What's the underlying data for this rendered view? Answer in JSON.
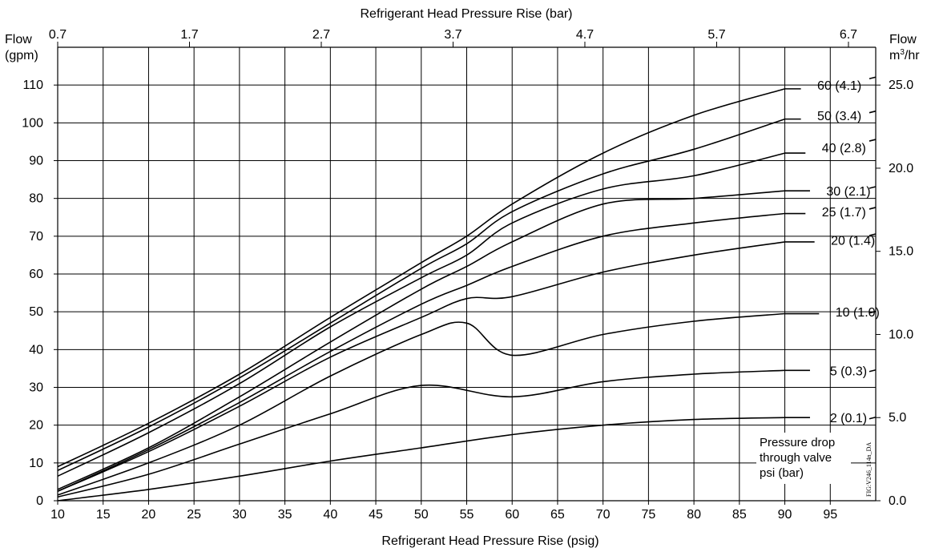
{
  "chart_data": {
    "type": "line",
    "top_axis": {
      "title": "Refrigerant Head Pressure Rise (bar)",
      "ticks": [
        "0.7",
        "1.7",
        "2.7",
        "3.7",
        "4.7",
        "5.7",
        "6.7"
      ],
      "tick_psig": [
        10,
        24.5,
        39,
        53.5,
        68,
        82.5,
        97
      ]
    },
    "bottom_axis": {
      "title": "Refrigerant Head Pressure Rise (psig)",
      "ticks": [
        "10",
        "15",
        "20",
        "25",
        "30",
        "35",
        "40",
        "45",
        "50",
        "55",
        "60",
        "65",
        "70",
        "75",
        "80",
        "85",
        "90",
        "95"
      ],
      "range": [
        10,
        100
      ]
    },
    "left_axis": {
      "title_line1": "Flow",
      "title_line2": "(gpm)",
      "ticks": [
        "0",
        "10",
        "20",
        "30",
        "40",
        "50",
        "60",
        "70",
        "80",
        "90",
        "100",
        "110"
      ],
      "range": [
        0,
        120
      ]
    },
    "right_axis": {
      "title_line1": "Flow",
      "title_line2_base": "m",
      "title_line2_sup": "3",
      "title_line2_rest": "/hr",
      "ticks": [
        "0.0",
        "5.0",
        "10.0",
        "15.0",
        "20.0",
        "25.0"
      ],
      "tick_gpm": [
        0,
        22,
        44,
        66,
        88,
        110
      ]
    },
    "grid": true,
    "series": [
      {
        "name": "2 (0.1)",
        "x": [
          10,
          20,
          30,
          40,
          50,
          60,
          70,
          80,
          90
        ],
        "y": [
          0,
          3,
          6.5,
          10.5,
          14,
          17.5,
          20,
          21.5,
          22
        ],
        "label_x": 97,
        "label_y": 22,
        "tick_y": 22
      },
      {
        "name": "5 (0.3)",
        "x": [
          10,
          20,
          30,
          40,
          50,
          60,
          70,
          80,
          90
        ],
        "y": [
          1,
          7,
          15,
          23,
          30.5,
          27.5,
          31.5,
          33.5,
          34.5
        ],
        "label_x": 97,
        "label_y": 34.5,
        "tick_y": 34.5
      },
      {
        "name": "10 (1.0)",
        "x": [
          10,
          20,
          30,
          40,
          50,
          55,
          60,
          70,
          80,
          90
        ],
        "y": [
          1.5,
          10,
          20,
          33,
          44,
          47,
          38.5,
          44,
          47.5,
          49.5
        ],
        "label_x": 98,
        "label_y": 50,
        "tick_y": 50
      },
      {
        "name": "20 (1.4)",
        "x": [
          10,
          20,
          30,
          40,
          50,
          55,
          60,
          70,
          80,
          90
        ],
        "y": [
          2.5,
          13,
          25,
          38,
          48.5,
          53.5,
          54,
          60.5,
          65,
          68.5
        ],
        "label_x": 97.5,
        "label_y": 69,
        "tick_y": 70.5
      },
      {
        "name": "25 (1.7)",
        "x": [
          10,
          20,
          30,
          40,
          50,
          55,
          60,
          70,
          80,
          90
        ],
        "y": [
          2.5,
          13.5,
          26,
          39.5,
          52,
          57,
          62,
          70,
          73.5,
          76
        ],
        "label_x": 96.5,
        "label_y": 76.5,
        "tick_y": 77.5
      },
      {
        "name": "30 (2.1)",
        "x": [
          10,
          20,
          30,
          40,
          50,
          55,
          60,
          70,
          80,
          90
        ],
        "y": [
          3,
          14,
          27.5,
          42,
          56,
          62,
          68.5,
          78.5,
          80,
          82
        ],
        "label_x": 97,
        "label_y": 82,
        "tick_y": 83
      },
      {
        "name": "40 (2.8)",
        "x": [
          10,
          20,
          30,
          40,
          50,
          55,
          60,
          70,
          80,
          90
        ],
        "y": [
          6.5,
          18,
          31,
          46,
          59,
          65,
          73.5,
          82.5,
          86,
          92
        ],
        "label_x": 96.5,
        "label_y": 93.5,
        "tick_y": 95.5
      },
      {
        "name": "50 (3.4)",
        "x": [
          10,
          20,
          30,
          40,
          50,
          55,
          60,
          70,
          80,
          90
        ],
        "y": [
          8,
          19.5,
          32.5,
          47,
          61.5,
          68,
          76.5,
          86.5,
          93,
          101
        ],
        "label_x": 96,
        "label_y": 102,
        "tick_y": 103
      },
      {
        "name": "60 (4.1)",
        "x": [
          10,
          20,
          30,
          40,
          50,
          55,
          60,
          70,
          80,
          90
        ],
        "y": [
          9,
          20.5,
          33.5,
          48.5,
          63,
          70,
          78.5,
          92,
          102,
          109
        ],
        "label_x": 96,
        "label_y": 110,
        "tick_y": 112
      }
    ],
    "note_lines": [
      "Pressure drop",
      "through valve",
      "psi (bar)"
    ],
    "figure_id": "FIG:V246_114n_DA"
  }
}
